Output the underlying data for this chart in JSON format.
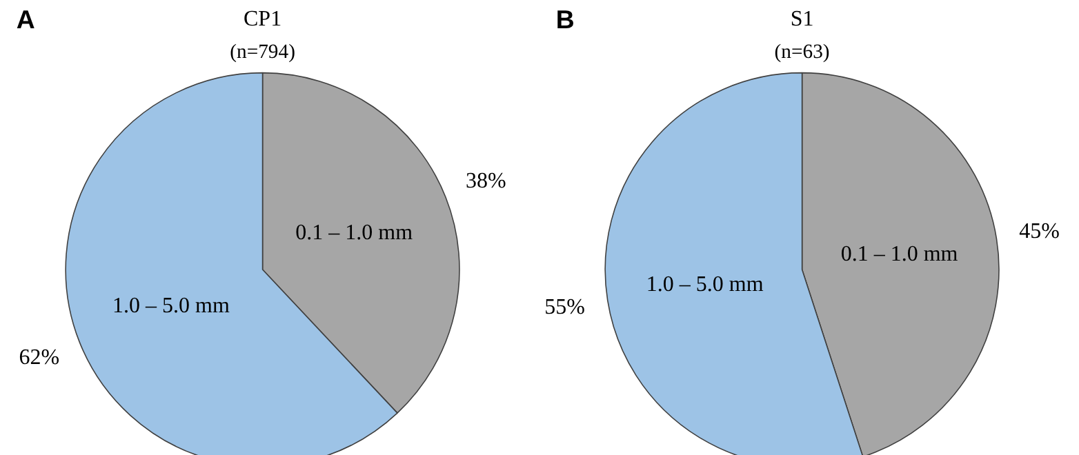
{
  "chart_data": [
    {
      "type": "pie",
      "title": "CP1",
      "subtitle": "(n=794)",
      "annotations": [
        "A"
      ],
      "categories": [
        "0.1 – 1.0 mm",
        "1.0 – 5.0 mm"
      ],
      "values": [
        38,
        62
      ],
      "colors": [
        "#a6a6a6",
        "#9dc3e6"
      ],
      "value_labels": [
        "38%",
        "62%"
      ]
    },
    {
      "type": "pie",
      "title": "S1",
      "subtitle": "(n=63)",
      "annotations": [
        "B"
      ],
      "categories": [
        "0.1 – 1.0 mm",
        "1.0 – 5.0 mm"
      ],
      "values": [
        45,
        55
      ],
      "colors": [
        "#a6a6a6",
        "#9dc3e6"
      ],
      "value_labels": [
        "45%",
        "55%"
      ]
    }
  ]
}
